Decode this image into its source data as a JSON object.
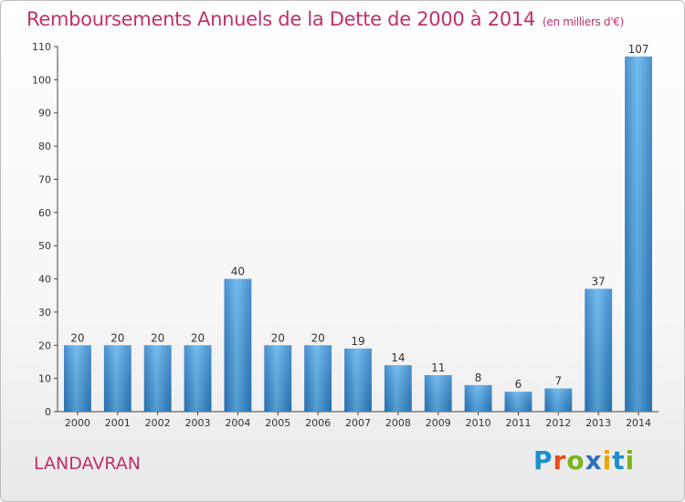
{
  "chart_data": {
    "type": "bar",
    "title": "Remboursements Annuels de la Dette de 2000 à 2014",
    "unit": "(en milliers d'€)",
    "categories": [
      "2000",
      "2001",
      "2002",
      "2003",
      "2004",
      "2005",
      "2006",
      "2007",
      "2008",
      "2009",
      "2010",
      "2011",
      "2012",
      "2013",
      "2014"
    ],
    "values": [
      20,
      20,
      20,
      20,
      40,
      20,
      20,
      19,
      14,
      11,
      8,
      6,
      7,
      37,
      107
    ],
    "ylim": [
      0,
      110
    ],
    "yticks": [
      0,
      10,
      20,
      30,
      40,
      50,
      60,
      70,
      80,
      90,
      100,
      110
    ],
    "grid": false,
    "legend": "none",
    "bar_color": "#3d8fd4"
  },
  "place_name": "LANDAVRAN",
  "brand": {
    "letters": [
      "P",
      "r",
      "o",
      "x",
      "i",
      "t",
      "i"
    ],
    "colors": [
      "#1a8fd0",
      "#e94b1b",
      "#7cb51c",
      "#2f6fb8",
      "#f0a500",
      "#1a8fd0",
      "#7cb51c"
    ]
  }
}
